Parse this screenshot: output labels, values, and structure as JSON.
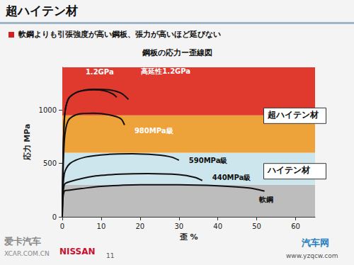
{
  "slide": {
    "title": "超ハイテン材",
    "subtitle": "軟鋼よりも引張強度が高い鋼板、張力が高いほど延びない",
    "brand": "NISSAN",
    "page": "11",
    "watermarks": [
      "爱卡汽车",
      "XCAR.COM.CN",
      "汽车网",
      "www.yzqcw.com"
    ]
  },
  "chart_data": {
    "type": "line",
    "title": "鋼板の応力ー歪線図",
    "x_label": "歪 %",
    "y_label": "応力 MPa",
    "xlim": [
      0,
      65
    ],
    "xticks": [
      0,
      10,
      20,
      30,
      40,
      50,
      60
    ],
    "ylim": [
      0,
      1400
    ],
    "yticks": [
      0,
      500,
      1000
    ],
    "grid": false,
    "bands": [
      {
        "from": 0,
        "to": 300,
        "color": "#bdbdbd"
      },
      {
        "from": 300,
        "to": 600,
        "color": "#cde6ee"
      },
      {
        "from": 600,
        "to": 950,
        "color": "#eea23a"
      },
      {
        "from": 950,
        "to": 1400,
        "color": "#e03a2f"
      }
    ],
    "band_labels": [
      {
        "text": "超ハイテン材",
        "value": 950
      },
      {
        "text": "ハイテン材",
        "value": 430
      }
    ],
    "series": [
      {
        "name": "1.2GPa",
        "color": "#111111",
        "x": [
          0,
          0.5,
          1.5,
          4,
          8,
          11,
          13,
          14
        ],
        "values": [
          0,
          900,
          1100,
          1170,
          1190,
          1180,
          1150,
          1120
        ]
      },
      {
        "name": "高延性1.2GPa",
        "color": "#111111",
        "x": [
          0,
          0.5,
          1.5,
          4,
          8,
          12,
          15,
          17
        ],
        "values": [
          0,
          900,
          1100,
          1170,
          1195,
          1190,
          1160,
          1100
        ]
      },
      {
        "name": "980MPa級",
        "color": "#111111",
        "x": [
          0,
          0.5,
          1.5,
          4,
          8,
          12,
          15,
          16
        ],
        "values": [
          0,
          700,
          900,
          960,
          970,
          955,
          920,
          860
        ]
      },
      {
        "name": "590MPa級",
        "color": "#111111",
        "x": [
          0,
          0.5,
          2,
          6,
          12,
          18,
          24,
          28,
          30
        ],
        "values": [
          0,
          400,
          500,
          560,
          585,
          590,
          580,
          560,
          530
        ]
      },
      {
        "name": "440MPa級",
        "color": "#111111",
        "x": [
          0,
          0.5,
          2,
          8,
          15,
          22,
          30,
          34,
          36
        ],
        "values": [
          0,
          300,
          330,
          380,
          400,
          405,
          395,
          370,
          340
        ]
      },
      {
        "name": "軟鋼",
        "color": "#111111",
        "x": [
          0,
          0.5,
          2,
          5,
          10,
          20,
          30,
          40,
          48,
          52
        ],
        "values": [
          0,
          240,
          250,
          265,
          285,
          300,
          300,
          290,
          270,
          240
        ]
      }
    ]
  }
}
